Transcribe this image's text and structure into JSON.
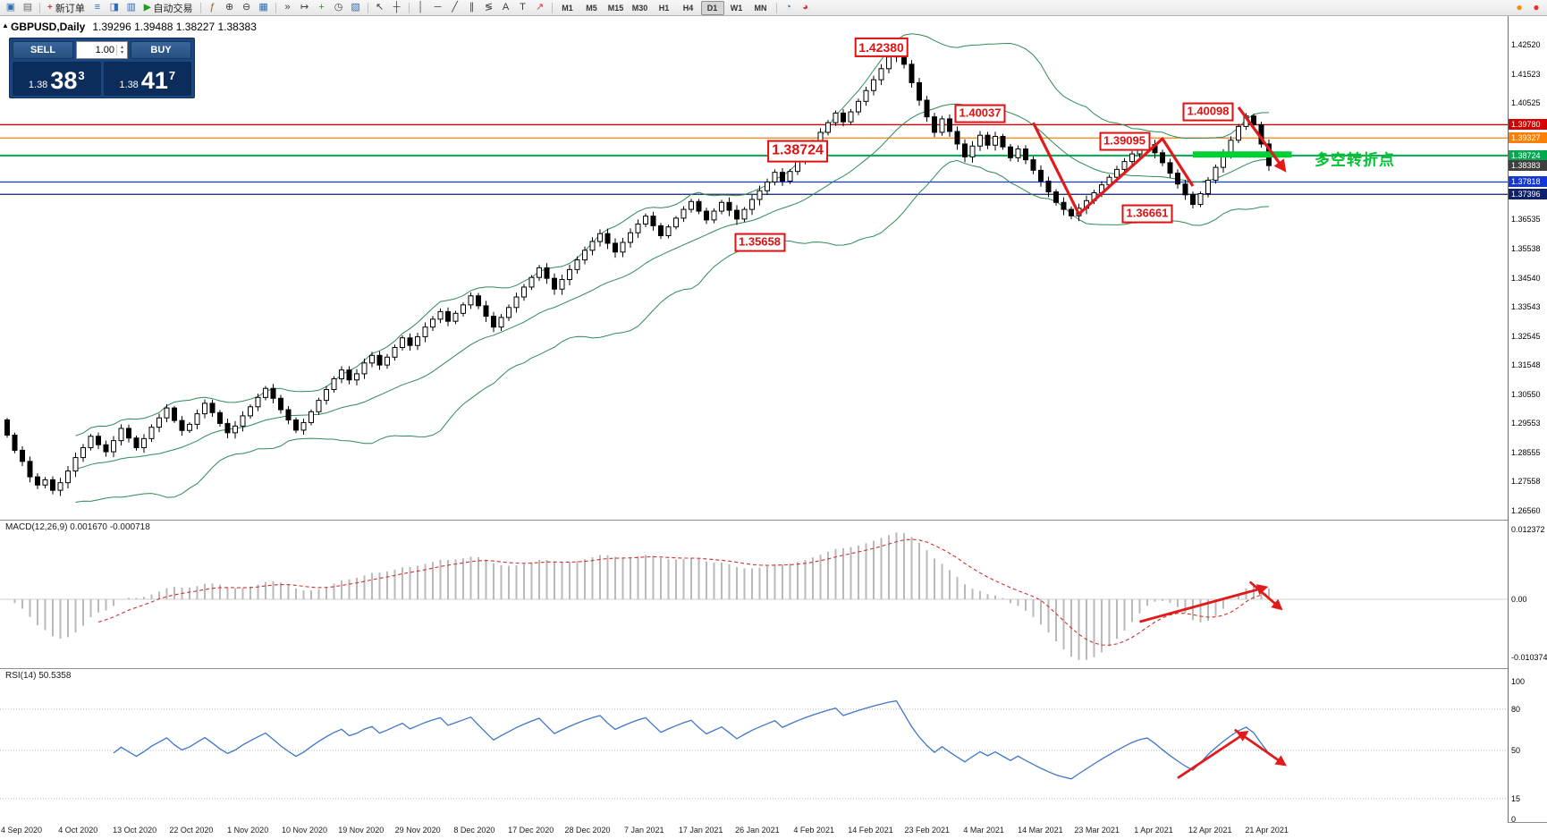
{
  "toolbar": {
    "items": [
      {
        "t": "icon",
        "name": "new-chart-icon",
        "g": "▣",
        "c": "#2f6db5"
      },
      {
        "t": "icon",
        "name": "profiles-icon",
        "g": "▤",
        "c": "#6b6b6b"
      },
      {
        "t": "sep"
      },
      {
        "t": "btn",
        "name": "new-order-button",
        "label": "新订单",
        "g": "+",
        "c": "#d03a3a"
      },
      {
        "t": "icon",
        "name": "market-watch-icon",
        "g": "≡",
        "c": "#2f6db5"
      },
      {
        "t": "icon",
        "name": "data-window-icon",
        "g": "◨",
        "c": "#2f6db5"
      },
      {
        "t": "icon",
        "name": "navigator-icon",
        "g": "▥",
        "c": "#2f6db5"
      },
      {
        "t": "btn",
        "name": "auto-trading-button",
        "label": "自动交易",
        "g": "▶",
        "c": "#1ca01c"
      },
      {
        "t": "sep"
      },
      {
        "t": "icon",
        "name": "indicator-list-icon",
        "g": "ƒ",
        "c": "#8a5c2f"
      },
      {
        "t": "icon",
        "name": "zoom-in-icon",
        "g": "⊕",
        "c": "#3d3d3d"
      },
      {
        "t": "icon",
        "name": "zoom-out-icon",
        "g": "⊖",
        "c": "#3d3d3d"
      },
      {
        "t": "icon",
        "name": "tile-windows-icon",
        "g": "▦",
        "c": "#2f6db5"
      },
      {
        "t": "sep"
      },
      {
        "t": "icon",
        "name": "auto-scroll-icon",
        "g": "»",
        "c": "#3d3d3d"
      },
      {
        "t": "icon",
        "name": "chart-shift-icon",
        "g": "↦",
        "c": "#3d3d3d"
      },
      {
        "t": "icon",
        "name": "add-indicator-icon",
        "g": "+",
        "c": "#1ca01c"
      },
      {
        "t": "icon",
        "name": "periods-icon",
        "g": "◷",
        "c": "#3d3d3d"
      },
      {
        "t": "icon",
        "name": "templates-icon",
        "g": "▧",
        "c": "#2f6db5"
      },
      {
        "t": "sep"
      },
      {
        "t": "icon",
        "name": "cursor-icon",
        "g": "↖",
        "c": "#3d3d3d"
      },
      {
        "t": "icon",
        "name": "crosshair-icon",
        "g": "┼",
        "c": "#3d3d3d"
      },
      {
        "t": "sep"
      },
      {
        "t": "icon",
        "name": "vertical-line-icon",
        "g": "│",
        "c": "#3d3d3d"
      },
      {
        "t": "icon",
        "name": "horizontal-line-icon",
        "g": "─",
        "c": "#3d3d3d"
      },
      {
        "t": "icon",
        "name": "trendline-icon",
        "g": "╱",
        "c": "#3d3d3d"
      },
      {
        "t": "icon",
        "name": "equidistant-channel-icon",
        "g": "∥",
        "c": "#3d3d3d"
      },
      {
        "t": "icon",
        "name": "fibonacci-icon",
        "g": "≶",
        "c": "#3d3d3d"
      },
      {
        "t": "icon",
        "name": "text-icon",
        "g": "A",
        "c": "#3d3d3d"
      },
      {
        "t": "icon",
        "name": "text-label-icon",
        "g": "T",
        "c": "#3d3d3d"
      },
      {
        "t": "icon",
        "name": "arrows-icon",
        "g": "↗",
        "c": "#d03a3a"
      },
      {
        "t": "sep"
      },
      {
        "t": "tf"
      },
      {
        "t": "sep"
      },
      {
        "t": "icon",
        "name": "strategy-tester-icon",
        "g": "◔",
        "c": "#2f6db5"
      },
      {
        "t": "icon",
        "name": "alerts-icon",
        "g": "◕",
        "c": "#d03a3a"
      }
    ],
    "timeframes": [
      "M1",
      "M5",
      "M15",
      "M30",
      "H1",
      "H4",
      "D1",
      "W1",
      "MN"
    ],
    "active_timeframe": "D1",
    "right_icons": [
      {
        "name": "notifications-icon",
        "g": "●",
        "c": "#ff8a00"
      },
      {
        "name": "live-update-icon",
        "g": "●",
        "c": "#e03030"
      }
    ]
  },
  "chart": {
    "symbol_info": "GBPUSD,Daily",
    "ohlc_info": "1.39296 1.39488 1.38227 1.38383",
    "collapse_glyph": "▲",
    "trade_panel": {
      "sell_label": "SELL",
      "buy_label": "BUY",
      "volume": "1.00",
      "spinner_up": "▴",
      "spinner_down": "▾",
      "sell_price": {
        "small": "1.38",
        "big": "38",
        "sup": "3"
      },
      "buy_price": {
        "small": "1.38",
        "big": "41",
        "sup": "7"
      }
    },
    "price_scale_regular": [
      "1.42520",
      "1.41523",
      "1.40525",
      "1.39528",
      "1.38530",
      "1.37533",
      "1.36535",
      "1.35538",
      "1.34540",
      "1.33543",
      "1.32545",
      "1.31548",
      "1.30550",
      "1.29553",
      "1.28555",
      "1.27558",
      "1.26560"
    ],
    "hlines": [
      {
        "label": "1.39780",
        "price": 1.3978,
        "color": "#d40000"
      },
      {
        "label": "1.39327",
        "price": 1.39327,
        "color": "#ff7f00"
      },
      {
        "label": "1.38724",
        "price": 1.38724,
        "color": "#00a84f"
      },
      {
        "label": "1.37818",
        "price": 1.37818,
        "color": "#1437d8"
      },
      {
        "label": "1.37396",
        "price": 1.37396,
        "color": "#10206b"
      }
    ],
    "current_price": {
      "label": "1.38383",
      "price": 1.38383,
      "badge_color": "#3f3f3f"
    },
    "callouts": [
      {
        "text": "1.42380",
        "bar": 115,
        "price": 1.4243,
        "size": 14
      },
      {
        "text": "1.40037",
        "bar": 128,
        "price": 1.4016,
        "size": 13
      },
      {
        "text": "1.38724",
        "bar": 104,
        "price": 1.3888,
        "size": 16
      },
      {
        "text": "1.39095",
        "bar": 147,
        "price": 1.3921,
        "size": 13
      },
      {
        "text": "1.40098",
        "bar": 158,
        "price": 1.4022,
        "size": 13
      },
      {
        "text": "1.36661",
        "bar": 150,
        "price": 1.3673,
        "size": 13
      },
      {
        "text": "1.35658",
        "bar": 99,
        "price": 1.3575,
        "size": 13
      }
    ],
    "green_zone": {
      "from_bar": 156,
      "to_bar": 169,
      "price": 1.3876,
      "color": "#00ce35",
      "thickness": 7
    },
    "note": {
      "text": "多空转折点",
      "bar": 172,
      "price": 1.3862,
      "color": "#00c332"
    },
    "price_arrows": [
      {
        "points": [
          [
            135,
            1.3985
          ],
          [
            141,
            1.3672
          ],
          [
            152,
            1.393
          ],
          [
            156,
            1.3768
          ]
        ],
        "head": false
      },
      {
        "points": [
          [
            162,
            1.4038
          ],
          [
            168,
            1.3825
          ]
        ],
        "head": true
      }
    ],
    "arrow_color": "#e01b1b"
  },
  "macd": {
    "label": "MACD(12,26,9) 0.001670 -0.000718",
    "fast": 12,
    "slow": 26,
    "signal": 9,
    "scale": [
      {
        "label": "0.012372",
        "value": 0.012372
      },
      {
        "label": "0.00",
        "value": 0
      },
      {
        "label": "-0.010374",
        "value": -0.010374
      }
    ],
    "arrows": [
      {
        "points": [
          [
            149,
            -0.004
          ],
          [
            165.5,
            0.0021
          ]
        ],
        "head": true
      },
      {
        "points": [
          [
            163.5,
            0.0031
          ],
          [
            167.5,
            -0.0016
          ]
        ],
        "head": true
      }
    ]
  },
  "rsi": {
    "label": "RSI(14) 50.5358",
    "period": 14,
    "scale": [
      {
        "label": "100",
        "value": 100
      },
      {
        "label": "80",
        "value": 80
      },
      {
        "label": "50",
        "value": 50
      },
      {
        "label": "15",
        "value": 15
      },
      {
        "label": "0",
        "value": 0
      }
    ],
    "levels": [
      80,
      50,
      15
    ],
    "arrows": [
      {
        "points": [
          [
            154,
            30
          ],
          [
            163,
            63
          ]
        ],
        "head": true
      },
      {
        "points": [
          [
            161.5,
            65
          ],
          [
            168,
            40
          ]
        ],
        "head": true
      }
    ]
  },
  "dates": [
    "4 Sep 2020",
    "4 Oct 2020",
    "13 Oct 2020",
    "22 Oct 2020",
    "1 Nov 2020",
    "10 Nov 2020",
    "19 Nov 2020",
    "29 Nov 2020",
    "8 Dec 2020",
    "17 Dec 2020",
    "28 Dec 2020",
    "7 Jan 2021",
    "17 Jan 2021",
    "26 Jan 2021",
    "4 Feb 2021",
    "14 Feb 2021",
    "23 Feb 2021",
    "4 Mar 2021",
    "14 Mar 2021",
    "23 Mar 2021",
    "1 Apr 2021",
    "12 Apr 2021",
    "21 Apr 2021"
  ],
  "chart_data": {
    "type": "candlestick",
    "symbol": "GBPUSD",
    "timeframe": "Daily",
    "ylim": [
      1.2656,
      1.4252
    ],
    "bollinger": {
      "period": 20,
      "deviation": 2
    },
    "closes": [
      1.2915,
      1.2863,
      1.2825,
      1.2772,
      1.2744,
      1.2762,
      1.2726,
      1.2752,
      1.2792,
      1.2838,
      1.2872,
      1.2911,
      1.2882,
      1.2858,
      1.2896,
      1.2938,
      1.2905,
      1.2872,
      1.2903,
      1.2942,
      1.2974,
      1.3008,
      1.2965,
      1.2931,
      1.2952,
      1.2988,
      1.3024,
      1.2992,
      1.2955,
      1.2923,
      1.2946,
      1.2981,
      1.3012,
      1.3044,
      1.3075,
      1.3041,
      1.3002,
      1.2967,
      1.2932,
      1.2958,
      1.2995,
      1.3034,
      1.3071,
      1.3108,
      1.3138,
      1.3104,
      1.3125,
      1.3162,
      1.3188,
      1.3155,
      1.3182,
      1.3215,
      1.3248,
      1.3222,
      1.3252,
      1.3285,
      1.3312,
      1.3338,
      1.3305,
      1.3332,
      1.3361,
      1.3392,
      1.3358,
      1.3322,
      1.3285,
      1.3318,
      1.3352,
      1.3388,
      1.3422,
      1.3455,
      1.3488,
      1.3452,
      1.3415,
      1.3448,
      1.3482,
      1.3515,
      1.3548,
      1.3578,
      1.3605,
      1.3572,
      1.3542,
      1.3575,
      1.3608,
      1.3638,
      1.3665,
      1.3632,
      1.3598,
      1.3628,
      1.3658,
      1.3688,
      1.3715,
      1.3682,
      1.3652,
      1.3682,
      1.3712,
      1.3685,
      1.3655,
      1.3688,
      1.3722,
      1.3752,
      1.3782,
      1.3815,
      1.3785,
      1.3818,
      1.3852,
      1.3885,
      1.3918,
      1.3952,
      1.3985,
      1.4018,
      1.3988,
      1.4022,
      1.4058,
      1.4095,
      1.4132,
      1.417,
      1.421,
      1.4238,
      1.4185,
      1.4122,
      1.4062,
      1.4005,
      1.3952,
      1.3998,
      1.3955,
      1.3912,
      1.3868,
      1.3905,
      1.3942,
      1.3908,
      1.3938,
      1.3902,
      1.3865,
      1.3895,
      1.3858,
      1.3822,
      1.3785,
      1.3748,
      1.3712,
      1.3688,
      1.3666,
      1.3692,
      1.3718,
      1.3745,
      1.3772,
      1.3798,
      1.3825,
      1.3852,
      1.3878,
      1.3898,
      1.391,
      1.3882,
      1.3848,
      1.3812,
      1.3775,
      1.3738,
      1.3705,
      1.3742,
      1.3788,
      1.3832,
      1.3878,
      1.3925,
      1.3972,
      1.4008,
      1.3978,
      1.3912,
      1.3838
    ]
  }
}
